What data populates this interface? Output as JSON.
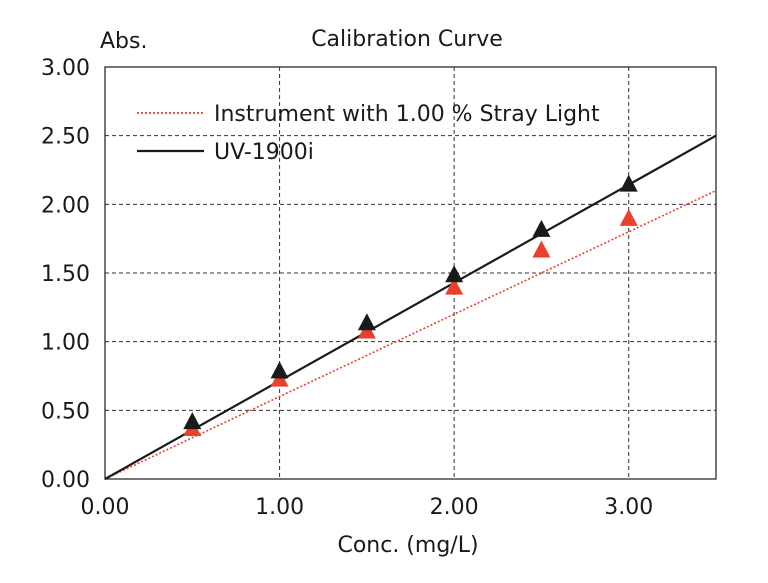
{
  "chart_data": {
    "type": "line",
    "title": "Calibration Curve",
    "xlabel": "Conc. (mg/L)",
    "ylabel": "Abs.",
    "xlim": [
      0,
      3.5
    ],
    "ylim": [
      0,
      3.0
    ],
    "xticks": [
      "0.00",
      "1.00",
      "2.00",
      "3.00"
    ],
    "xtick_values": [
      0,
      1,
      2,
      3
    ],
    "yticks": [
      "0.00",
      "0.50",
      "1.00",
      "1.50",
      "2.00",
      "2.50",
      "3.00"
    ],
    "ytick_values": [
      0,
      0.5,
      1.0,
      1.5,
      2.0,
      2.5,
      3.0
    ],
    "grid": true,
    "legend_position": "top-left",
    "series": [
      {
        "name": "Instrument with 1.00 % Stray Light",
        "color": "#e8412c",
        "line_style": "dotted",
        "marker": "triangle",
        "points": {
          "x": [
            0.5,
            1.0,
            1.5,
            2.0,
            2.5,
            3.0
          ],
          "y": [
            0.36,
            0.72,
            1.07,
            1.39,
            1.66,
            1.89
          ]
        },
        "fit_line": {
          "x": [
            0,
            3.5
          ],
          "y": [
            0,
            2.1
          ]
        }
      },
      {
        "name": "UV-1900i",
        "color": "#1a1a1a",
        "line_style": "solid",
        "marker": "triangle",
        "points": {
          "x": [
            0.5,
            1.0,
            1.5,
            2.0,
            2.5,
            3.0
          ],
          "y": [
            0.41,
            0.78,
            1.13,
            1.48,
            1.81,
            2.14
          ]
        },
        "fit_line": {
          "x": [
            0,
            3.5
          ],
          "y": [
            0,
            2.5
          ]
        }
      }
    ]
  }
}
